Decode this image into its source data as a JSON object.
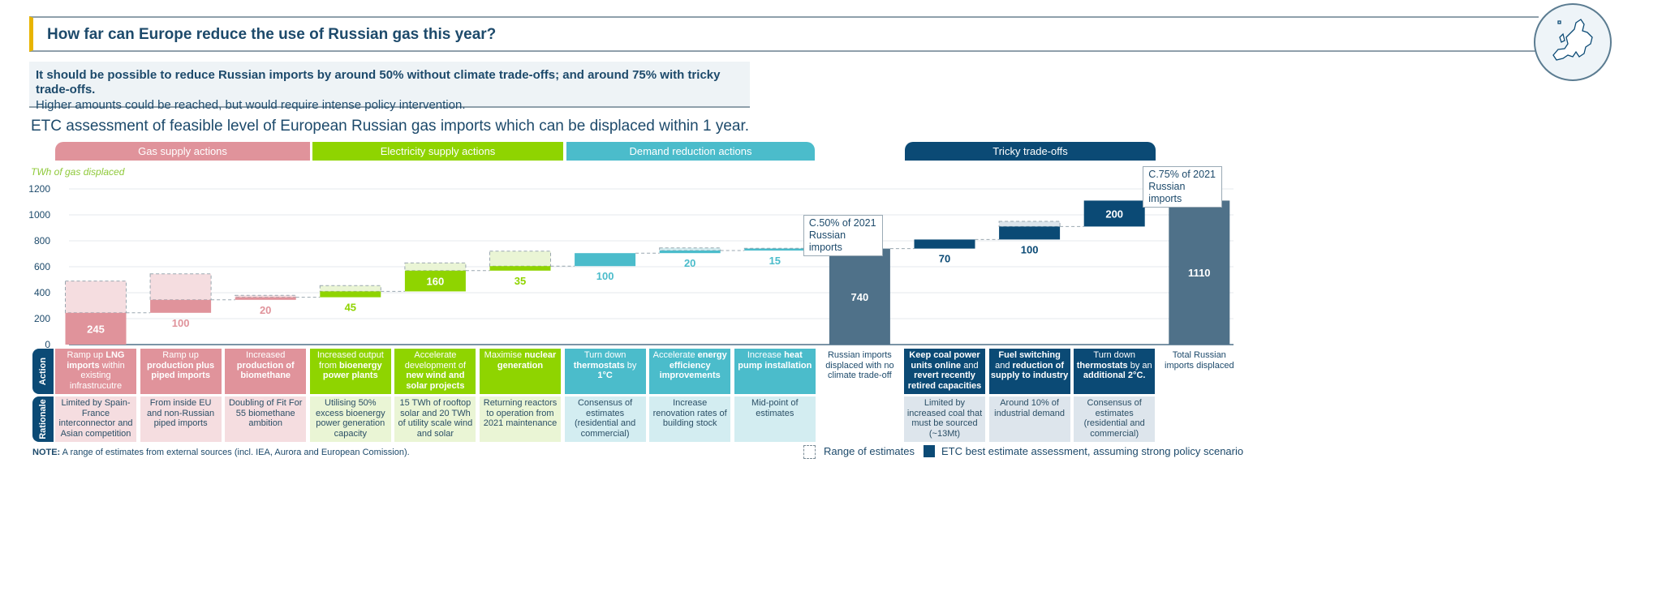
{
  "header": {
    "title": "How far can Europe reduce the use of Russian gas this year?",
    "logo_icon": "europe-map-icon"
  },
  "summary": {
    "line1": "It should be possible to reduce Russian imports by around 50% without climate trade-offs; and around 75% with tricky trade-offs.",
    "line2": "Higher amounts could be reached, but would require intense policy intervention."
  },
  "subtitle": "ETC assessment of feasible level of European Russian gas imports which can be displaced within 1 year.",
  "colors": {
    "gas": "#e0939b",
    "gas_light": "#f5dde0",
    "electricity": "#8fd400",
    "electricity_light": "#eaf5d5",
    "demand": "#4bbccb",
    "demand_light": "#d3edf1",
    "tricky": "#0b4a75",
    "tricky_light": "#dde5ec",
    "total": "#4f7189"
  },
  "groups": [
    {
      "label": "Gas supply actions",
      "key": "gas"
    },
    {
      "label": "Electricity supply actions",
      "key": "electricity"
    },
    {
      "label": "Demand reduction actions",
      "key": "demand"
    },
    {
      "label": "Tricky trade-offs",
      "key": "tricky"
    }
  ],
  "chart_data": {
    "type": "waterfall",
    "ylabel": "TWh of gas displaced",
    "ylim": [
      0,
      1200
    ],
    "yticks": [
      0,
      200,
      400,
      600,
      800,
      1000,
      1200
    ],
    "grid": true,
    "bars": [
      {
        "group": "gas",
        "value": 245,
        "label": "245",
        "range_high": 490
      },
      {
        "group": "gas",
        "value": 100,
        "label": "100",
        "range_high": 545
      },
      {
        "group": "gas",
        "value": 20,
        "label": "20",
        "range_high": 380
      },
      {
        "group": "electricity",
        "value": 45,
        "label": "45",
        "range_high": 455
      },
      {
        "group": "electricity",
        "value": 160,
        "label": "160",
        "range_high": 630
      },
      {
        "group": "electricity",
        "value": 35,
        "label": "35",
        "range_high": 720
      },
      {
        "group": "demand",
        "value": 100,
        "label": "100"
      },
      {
        "group": "demand",
        "value": 20,
        "label": "20",
        "range_high": 745
      },
      {
        "group": "demand",
        "value": 15,
        "label": "15",
        "range_high": 742
      },
      {
        "group": "total",
        "value": 740,
        "label": "740",
        "is_total": true,
        "callout": "C.50% of 2021 Russian imports"
      },
      {
        "group": "tricky",
        "value": 70,
        "label": "70"
      },
      {
        "group": "tricky",
        "value": 100,
        "label": "100",
        "range_high": 950
      },
      {
        "group": "tricky",
        "value": 200,
        "label": "200"
      },
      {
        "group": "total",
        "value": 1110,
        "label": "1110",
        "is_total": true,
        "callout": "C.75% of 2021 Russian imports"
      }
    ]
  },
  "table": {
    "row_labels": {
      "action": "Action",
      "rationale": "Rationale"
    },
    "columns": [
      {
        "group": "gas",
        "action": [
          [
            "Ramp up ",
            0
          ],
          [
            "LNG imports",
            1
          ],
          [
            " within existing infrastrucutre",
            0
          ]
        ],
        "rationale": "Limited by Spain-France interconnector and Asian competition"
      },
      {
        "group": "gas",
        "action": [
          [
            "Ramp up ",
            0
          ],
          [
            "production plus piped imports",
            1
          ]
        ],
        "rationale": "From inside EU and non-Russian piped imports"
      },
      {
        "group": "gas",
        "action": [
          [
            "Increased ",
            0
          ],
          [
            "production of biomethane",
            1
          ]
        ],
        "rationale": "Doubling of Fit For 55 biomethane ambition"
      },
      {
        "group": "electricity",
        "action": [
          [
            "Increased output from ",
            0
          ],
          [
            "bioenergy power plants",
            1
          ]
        ],
        "rationale": "Utilising 50% excess bioenergy power generation capacity"
      },
      {
        "group": "electricity",
        "action": [
          [
            "Accelerate development of ",
            0
          ],
          [
            "new wind and solar projects",
            1
          ]
        ],
        "rationale": "15 TWh of rooftop solar and 20 TWh of utility scale wind and solar"
      },
      {
        "group": "electricity",
        "action": [
          [
            "Maximise ",
            0
          ],
          [
            "nuclear generation",
            1
          ]
        ],
        "rationale": "Returning reactors to operation from 2021 maintenance"
      },
      {
        "group": "demand",
        "action": [
          [
            "Turn down ",
            0
          ],
          [
            "thermostats",
            1
          ],
          [
            " by ",
            0
          ],
          [
            "1°C",
            1
          ]
        ],
        "rationale": "Consensus of estimates (residential and commercial)"
      },
      {
        "group": "demand",
        "action": [
          [
            "Accelerate ",
            0
          ],
          [
            "energy efficiency improvements",
            1
          ]
        ],
        "rationale": "Increase renovation rates of building stock"
      },
      {
        "group": "demand",
        "action": [
          [
            "Increase ",
            0
          ],
          [
            "heat pump installation",
            1
          ]
        ],
        "rationale": "Mid-point of estimates"
      },
      {
        "group": "total",
        "action": [
          [
            "Russian imports displaced with no climate trade-off",
            0
          ]
        ],
        "rationale": ""
      },
      {
        "group": "tricky",
        "action": [
          [
            "Keep coal power units online",
            1
          ],
          [
            " and ",
            0
          ],
          [
            "revert recently retired capacities",
            1
          ]
        ],
        "rationale": "Limited by increased coal that must be sourced (~13Mt)"
      },
      {
        "group": "tricky",
        "action": [
          [
            "Fuel switching",
            1
          ],
          [
            " and ",
            0
          ],
          [
            "reduction of supply to industry",
            1
          ]
        ],
        "rationale": "Around 10% of industrial demand"
      },
      {
        "group": "tricky",
        "action": [
          [
            "Turn down ",
            0
          ],
          [
            "thermostats",
            1
          ],
          [
            " by an ",
            0
          ],
          [
            "additional  2°C.",
            1
          ]
        ],
        "rationale": "Consensus of estimates (residential and commercial)"
      },
      {
        "group": "total",
        "action": [
          [
            "Total Russian imports displaced",
            0
          ]
        ],
        "rationale": ""
      }
    ]
  },
  "footer": {
    "note_bold": "NOTE:",
    "note": " A range of estimates from external sources (incl. IEA, Aurora and European Comission).",
    "legend_range": "Range of estimates",
    "legend_best": "ETC best estimate assessment, assuming strong policy scenario"
  }
}
